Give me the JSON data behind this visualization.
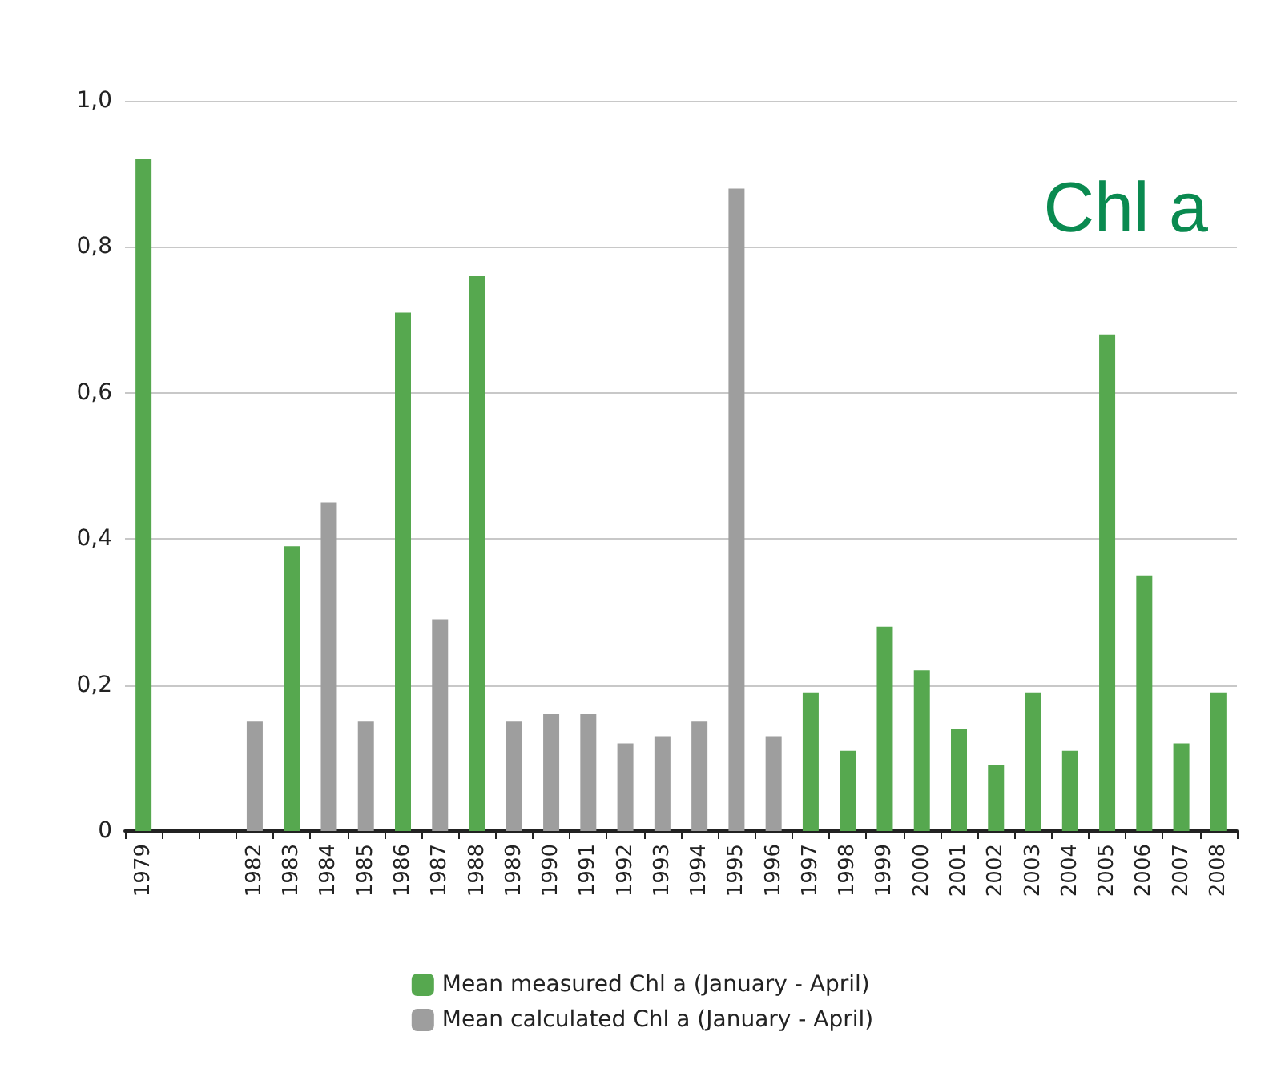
{
  "chart_data": {
    "type": "bar",
    "categories": [
      "1979",
      null,
      null,
      "1982",
      "1983",
      "1984",
      "1985",
      "1986",
      "1987",
      "1988",
      "1989",
      "1990",
      "1991",
      "1992",
      "1993",
      "1994",
      "1995",
      "1996",
      "1997",
      "1998",
      "1999",
      "2000",
      "2001",
      "2002",
      "2003",
      "2004",
      "2005",
      "2006",
      "2007",
      "2008"
    ],
    "series": [
      {
        "name": "Mean measured Chl a (January - April)",
        "color": "#56a84f",
        "values": [
          0.92,
          null,
          null,
          null,
          0.39,
          null,
          null,
          0.71,
          null,
          0.76,
          null,
          null,
          null,
          null,
          null,
          null,
          null,
          null,
          0.19,
          0.11,
          0.28,
          0.22,
          0.14,
          0.09,
          0.19,
          0.11,
          0.68,
          0.35,
          0.12,
          0.19
        ]
      },
      {
        "name": "Mean calculated Chl a (January - April)",
        "color": "#9e9e9e",
        "values": [
          null,
          null,
          null,
          0.15,
          null,
          0.45,
          0.15,
          null,
          0.29,
          null,
          0.15,
          0.16,
          0.16,
          0.12,
          0.13,
          0.15,
          0.88,
          0.13,
          null,
          null,
          null,
          null,
          null,
          null,
          null,
          null,
          null,
          null,
          null,
          null
        ]
      }
    ],
    "ylim": [
      0,
      1.0
    ],
    "yticks": [
      {
        "value": 0,
        "label": "0"
      },
      {
        "value": 0.2,
        "label": "0,2"
      },
      {
        "value": 0.4,
        "label": "0,4"
      },
      {
        "value": 0.6,
        "label": "0,6"
      },
      {
        "value": 0.8,
        "label": "0,8"
      },
      {
        "value": 1.0,
        "label": "1,0"
      }
    ],
    "grid": "y",
    "legend": "bottom",
    "annotations": [
      "Chl a"
    ]
  }
}
